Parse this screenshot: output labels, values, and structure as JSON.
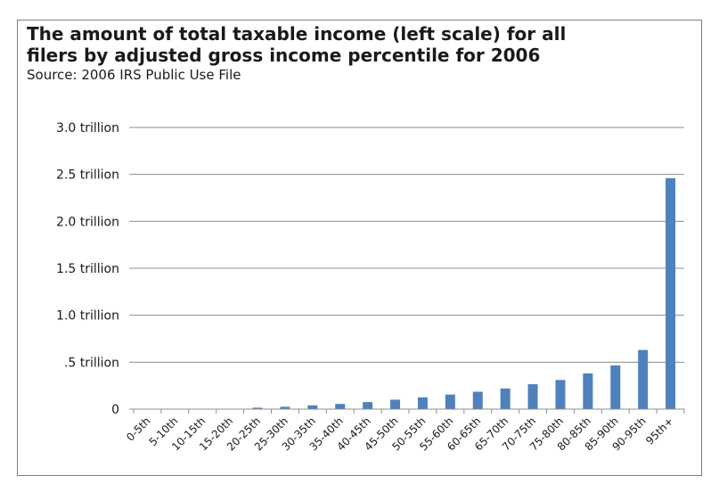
{
  "chart_data": {
    "type": "bar",
    "title": "The amount of total taxable income (left scale) for all filers by adjusted gross income percentile for 2006",
    "subtitle": "Source: 2006 IRS Public Use File",
    "xlabel": "",
    "ylabel": "",
    "ylim": [
      0,
      3.0
    ],
    "y_ticks": [
      {
        "value": 0,
        "label": "0"
      },
      {
        "value": 0.5,
        "label": ".5 trillion"
      },
      {
        "value": 1.0,
        "label": "1.0 trillion"
      },
      {
        "value": 1.5,
        "label": "1.5 trillion"
      },
      {
        "value": 2.0,
        "label": "2.0 trillion"
      },
      {
        "value": 2.5,
        "label": "2.5 trillion"
      },
      {
        "value": 3.0,
        "label": "3.0 trillion"
      }
    ],
    "grid": true,
    "bar_color": "#4f81bd",
    "categories": [
      "0-5th",
      "5-10th",
      "10-15th",
      "15-20th",
      "20-25th",
      "25-30th",
      "30-35th",
      "35-40th",
      "40-45th",
      "45-50th",
      "50-55th",
      "55-60th",
      "60-65th",
      "65-70th",
      "70-75th",
      "75-80th",
      "80-85th",
      "85-90th",
      "90-95th",
      "95th+"
    ],
    "values": [
      0,
      0,
      0,
      0.002,
      0.015,
      0.025,
      0.04,
      0.055,
      0.075,
      0.1,
      0.125,
      0.155,
      0.185,
      0.22,
      0.265,
      0.31,
      0.38,
      0.465,
      0.63,
      2.46
    ]
  }
}
